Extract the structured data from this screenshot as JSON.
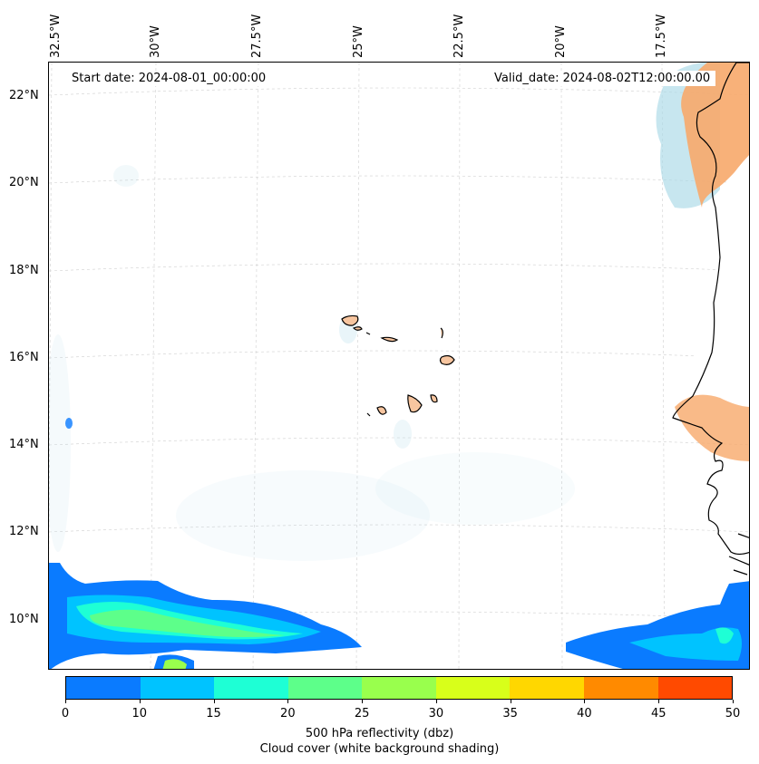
{
  "map": {
    "lon_labels": [
      "32.5°W",
      "30°W",
      "27.5°W",
      "25°W",
      "22.5°W",
      "20°W",
      "17.5°W"
    ],
    "lat_labels": [
      "22°N",
      "20°N",
      "18°N",
      "16°N",
      "14°N",
      "12°N",
      "10°N"
    ],
    "start_date": "Start date: 2024-08-01_00:00:00",
    "valid_date": "Valid_date: 2024-08-02T12:00:00.00",
    "land_color": "#f7c59f",
    "cloud_color": "#a9d8e6",
    "coast_color": "#000000"
  },
  "colorbar": {
    "ticks": [
      "0",
      "10",
      "15",
      "20",
      "25",
      "30",
      "35",
      "40",
      "45",
      "50"
    ],
    "colors": [
      "#0a7bff",
      "#00c3ff",
      "#1effd5",
      "#5dff8a",
      "#99ff4d",
      "#d8ff1a",
      "#ffd700",
      "#ff8a00",
      "#ff4a00"
    ],
    "label": "500 hPa reflectivity (dbz)",
    "sublabel": "Cloud cover (white background shading)"
  }
}
